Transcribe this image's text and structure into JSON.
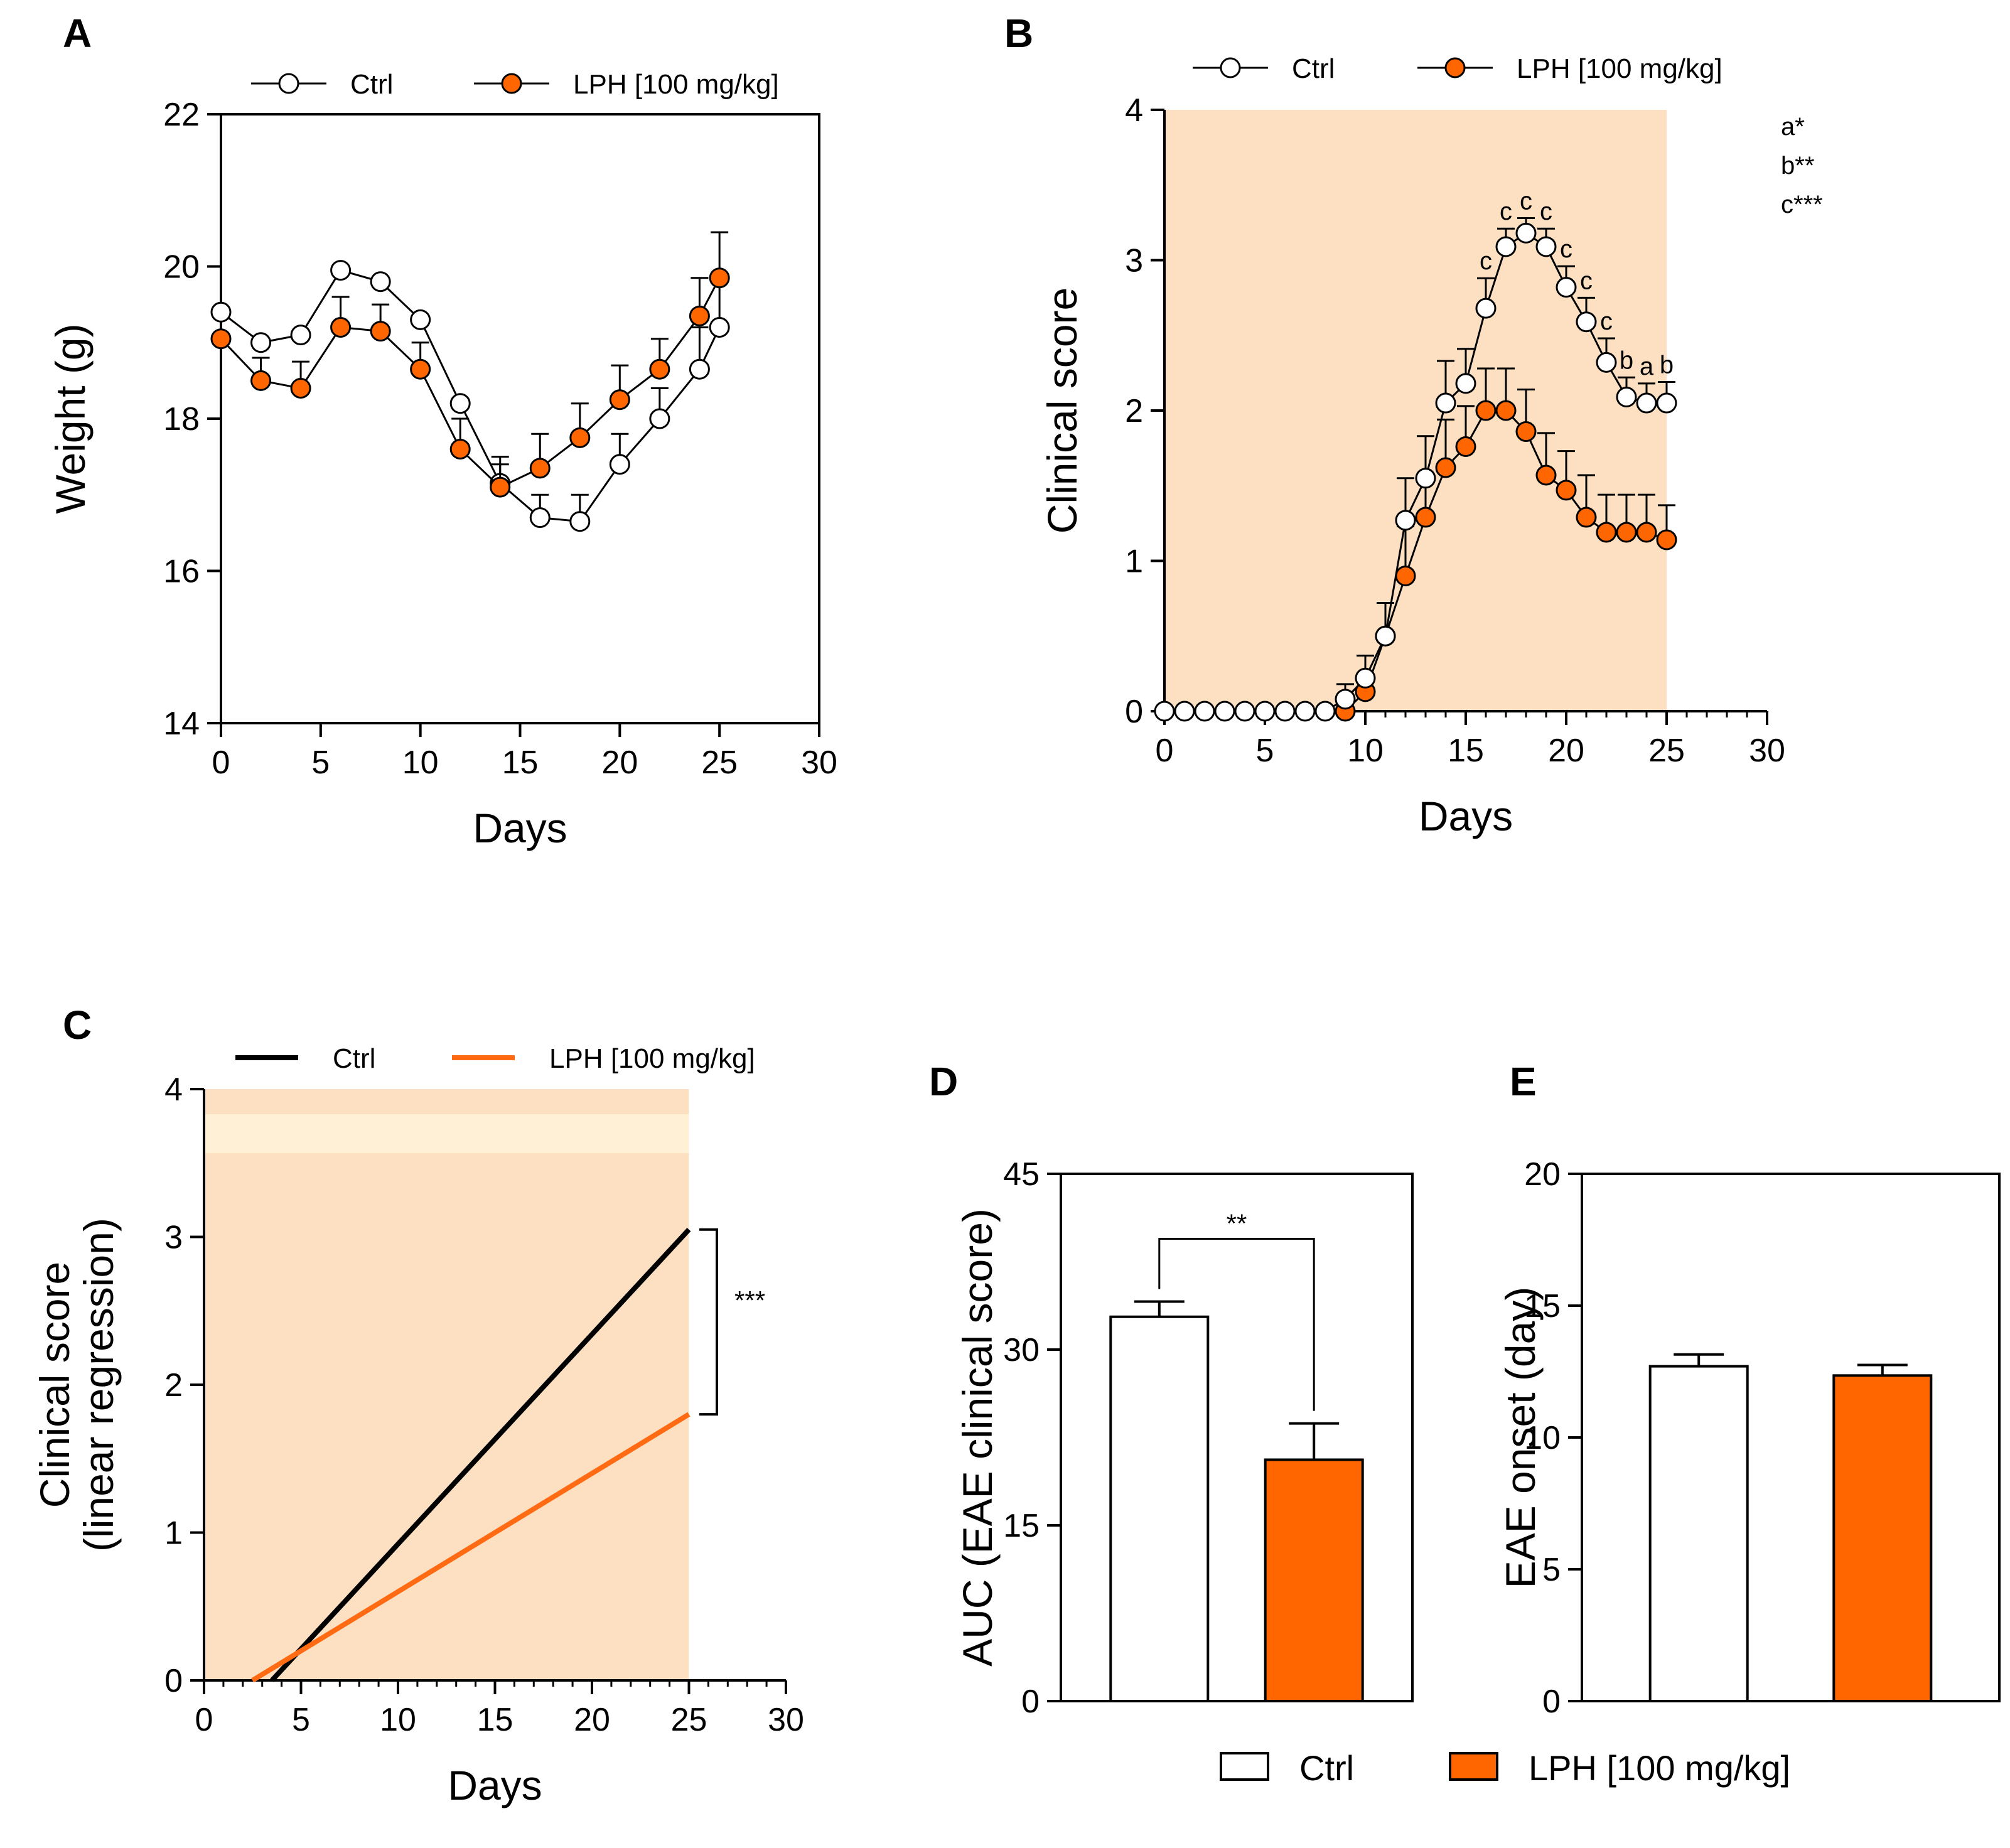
{
  "colors": {
    "ctrl_fill": "#ffffff",
    "lph_fill": "#ff6600",
    "lph_line": "#ff6a13",
    "ctrl_line": "#000000",
    "shade": "#fde0c2",
    "shade_band": "#fff0d6"
  },
  "legend_bottom": {
    "ctrl": "Ctrl",
    "lph": "LPH [100 mg/kg]"
  },
  "chart_data": [
    {
      "panel": "A",
      "type": "line",
      "xlabel": "Days",
      "ylabel": "Weight (g)",
      "xlim": [
        0,
        30
      ],
      "ylim": [
        14,
        22
      ],
      "xticks": [
        0,
        5,
        10,
        15,
        20,
        25,
        30
      ],
      "yticks": [
        14,
        16,
        18,
        20,
        22
      ],
      "legend": [
        "Ctrl",
        "LPH [100 mg/kg]"
      ],
      "series": [
        {
          "name": "Ctrl",
          "x": [
            0,
            2,
            4,
            6,
            8,
            10,
            12,
            14,
            16,
            18,
            20,
            22,
            24,
            25
          ],
          "y": [
            19.4,
            19.0,
            19.1,
            19.95,
            19.8,
            19.3,
            18.2,
            17.15,
            16.7,
            16.65,
            17.4,
            18.0,
            18.65,
            19.2
          ],
          "err": [
            0.0,
            0.0,
            0.0,
            0.0,
            0.0,
            0.0,
            0.0,
            0.35,
            0.3,
            0.35,
            0.4,
            0.4,
            0.55,
            0.6
          ]
        },
        {
          "name": "LPH [100 mg/kg]",
          "x": [
            0,
            2,
            4,
            6,
            8,
            10,
            12,
            14,
            16,
            18,
            20,
            22,
            24,
            25
          ],
          "y": [
            19.05,
            18.5,
            18.4,
            19.2,
            19.15,
            18.65,
            17.6,
            17.1,
            17.35,
            17.75,
            18.25,
            18.65,
            19.35,
            19.85
          ],
          "err": [
            0.0,
            0.3,
            0.35,
            0.4,
            0.35,
            0.35,
            0.4,
            0.3,
            0.45,
            0.45,
            0.45,
            0.4,
            0.5,
            0.6
          ]
        }
      ]
    },
    {
      "panel": "B",
      "type": "line",
      "xlabel": "Days",
      "ylabel": "Clinical score",
      "xlim": [
        0,
        30
      ],
      "ylim": [
        0,
        4
      ],
      "xticks": [
        0,
        5,
        10,
        15,
        20,
        25,
        30
      ],
      "yticks": [
        0,
        1,
        2,
        3,
        4
      ],
      "shaded_x_range": [
        0,
        25
      ],
      "legend": [
        "Ctrl",
        "LPH [100 mg/kg]"
      ],
      "significance_key": [
        "a*",
        "b**",
        "c***"
      ],
      "series": [
        {
          "name": "Ctrl",
          "x": [
            0,
            1,
            2,
            3,
            4,
            5,
            6,
            7,
            8,
            9,
            10,
            11,
            12,
            13,
            14,
            15,
            16,
            17,
            18,
            19,
            20,
            21,
            22,
            23,
            24,
            25
          ],
          "y": [
            0,
            0,
            0,
            0,
            0,
            0,
            0,
            0,
            0,
            0.08,
            0.22,
            0.5,
            1.27,
            1.55,
            2.05,
            2.18,
            2.68,
            3.09,
            3.18,
            3.09,
            2.82,
            2.59,
            2.32,
            2.09,
            2.05,
            2.05
          ],
          "err": [
            0,
            0,
            0,
            0,
            0,
            0,
            0,
            0,
            0,
            0.1,
            0.15,
            0.22,
            0.28,
            0.28,
            0.28,
            0.23,
            0.2,
            0.12,
            0.1,
            0.12,
            0.14,
            0.16,
            0.16,
            0.13,
            0.13,
            0.14
          ],
          "labels": [
            "",
            "",
            "",
            "",
            "",
            "",
            "",
            "",
            "",
            "",
            "",
            "",
            "",
            "",
            "",
            "",
            "c",
            "c",
            "c",
            "c",
            "c",
            "c",
            "c",
            "b",
            "a",
            "b"
          ]
        },
        {
          "name": "LPH [100 mg/kg]",
          "x": [
            9,
            10,
            11,
            12,
            13,
            14,
            15,
            16,
            17,
            18,
            19,
            20,
            21,
            22,
            23,
            24,
            25
          ],
          "y": [
            0,
            0.13,
            0.5,
            0.9,
            1.29,
            1.62,
            1.76,
            2.0,
            2.0,
            1.86,
            1.57,
            1.47,
            1.29,
            1.19,
            1.19,
            1.19,
            1.14
          ],
          "err": [
            0,
            0.1,
            0.22,
            0.33,
            0.28,
            0.32,
            0.27,
            0.28,
            0.28,
            0.28,
            0.28,
            0.26,
            0.28,
            0.25,
            0.25,
            0.25,
            0.23
          ]
        }
      ]
    },
    {
      "panel": "C",
      "type": "line",
      "xlabel": "Days",
      "ylabel": "Clinical score",
      "ylabel2": "(linear regression)",
      "xlim": [
        0,
        30
      ],
      "ylim": [
        0,
        4
      ],
      "xticks": [
        0,
        5,
        10,
        15,
        20,
        25,
        30
      ],
      "yticks": [
        0,
        1,
        2,
        3,
        4
      ],
      "shaded_x_range": [
        0,
        25
      ],
      "legend": [
        "Ctrl",
        "LPH [100 mg/kg]"
      ],
      "significance": "***",
      "series": [
        {
          "name": "Ctrl",
          "x": [
            3.5,
            25
          ],
          "y": [
            0,
            3.05
          ]
        },
        {
          "name": "LPH [100 mg/kg]",
          "x": [
            2.5,
            25
          ],
          "y": [
            0,
            1.8
          ]
        }
      ]
    },
    {
      "panel": "D",
      "type": "bar",
      "ylabel": "AUC (EAE clinical score)",
      "ylim": [
        0,
        45
      ],
      "yticks": [
        0,
        15,
        30,
        45
      ],
      "categories": [
        "Ctrl",
        "LPH [100 mg/kg]"
      ],
      "values": [
        32.8,
        20.6
      ],
      "err": [
        1.3,
        3.1
      ],
      "significance": "**"
    },
    {
      "panel": "E",
      "type": "bar",
      "ylabel": "EAE onset (day)",
      "ylim": [
        0,
        20
      ],
      "yticks": [
        0,
        5,
        10,
        15,
        20
      ],
      "categories": [
        "Ctrl",
        "LPH [100 mg/kg]"
      ],
      "values": [
        12.7,
        12.35
      ],
      "err": [
        0.45,
        0.4
      ]
    }
  ]
}
